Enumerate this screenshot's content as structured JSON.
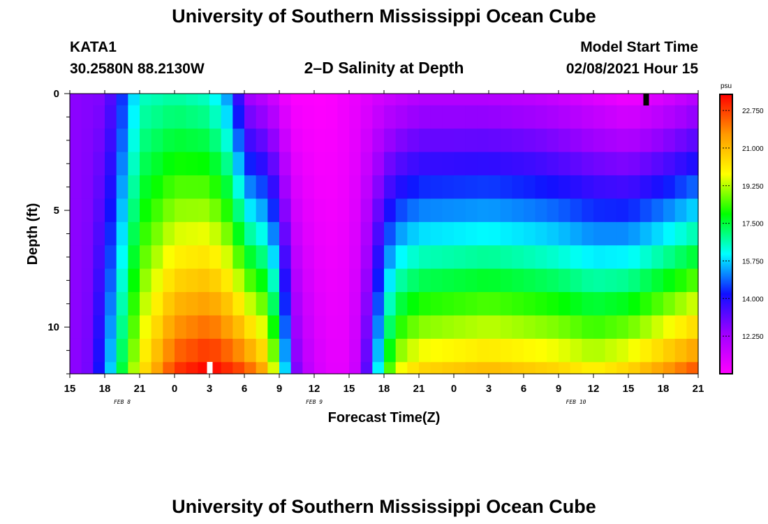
{
  "page": {
    "title_top": "University of Southern Mississippi Ocean Cube",
    "title_bottom": "University of Southern Mississippi Ocean Cube",
    "station": "KATA1",
    "coords": "30.2580N 88.2130W",
    "plot_title": "2–D Salinity at Depth",
    "model_label": "Model Start Time",
    "model_time": "02/08/2021 Hour 15"
  },
  "chart_data": {
    "type": "heatmap",
    "title": "2–D Salinity at Depth",
    "xlabel": "Forecast Time(Z)",
    "ylabel": "Depth (ft)",
    "x_tick_labels": [
      "15",
      "18",
      "21",
      "0",
      "3",
      "6",
      "9",
      "12",
      "15",
      "18",
      "21",
      "0",
      "3",
      "6",
      "9",
      "12",
      "15",
      "18",
      "21"
    ],
    "x_hours_from_start": [
      0,
      3,
      6,
      9,
      12,
      15,
      18,
      21,
      24,
      27,
      30,
      33,
      36,
      39,
      42,
      45,
      48,
      51,
      54
    ],
    "date_labels": [
      {
        "text": "FEB 8",
        "hour": 4.5
      },
      {
        "text": "FEB 9",
        "hour": 21
      },
      {
        "text": "FEB 10",
        "hour": 43.5
      }
    ],
    "y_tick_labels": [
      "0",
      "5",
      "10"
    ],
    "y_tick_values": [
      0,
      5,
      10
    ],
    "ylim": [
      0,
      12
    ],
    "xlim": [
      0,
      54
    ],
    "colorbar": {
      "unit": "psu",
      "min": 10.5,
      "max": 23.5,
      "tick_labels": [
        "22.750",
        "21.000",
        "19.250",
        "17.500",
        "15.750",
        "14.000",
        "12.250"
      ],
      "tick_values": [
        22.75,
        21.0,
        19.25,
        17.5,
        15.75,
        14.0,
        12.25
      ],
      "colors": [
        "#ff00ff",
        "#a000ff",
        "#1010ff",
        "#00ffff",
        "#00ff00",
        "#ffff00",
        "#ff9900",
        "#ff0000"
      ]
    },
    "depth_levels": [
      0,
      1,
      2,
      3,
      4,
      5,
      6,
      7,
      8,
      9,
      10,
      11,
      12
    ],
    "surface_profile": [
      [
        0,
        12.6
      ],
      [
        3,
        12.8
      ],
      [
        4.5,
        14.5
      ],
      [
        6,
        16.5
      ],
      [
        9,
        16.8
      ],
      [
        12,
        16.5
      ],
      [
        14,
        15.0
      ],
      [
        15,
        12.5
      ],
      [
        17,
        11.8
      ],
      [
        19,
        10.6
      ],
      [
        22,
        10.5
      ],
      [
        25,
        11.0
      ],
      [
        27,
        11.5
      ],
      [
        30,
        12.0
      ],
      [
        36,
        12.0
      ],
      [
        40,
        11.8
      ],
      [
        42,
        11.6
      ],
      [
        45,
        11.2
      ],
      [
        48,
        10.8
      ],
      [
        51,
        11.3
      ],
      [
        54,
        12.0
      ]
    ],
    "bottom_profile": [
      [
        0,
        12.5
      ],
      [
        1.5,
        12.9
      ],
      [
        3,
        14.8
      ],
      [
        4.5,
        17.5
      ],
      [
        6,
        20.0
      ],
      [
        9,
        22.8
      ],
      [
        12,
        23.5
      ],
      [
        15,
        22.5
      ],
      [
        17,
        21.0
      ],
      [
        18,
        18.0
      ],
      [
        19,
        13.5
      ],
      [
        20,
        12.0
      ],
      [
        22,
        11.0
      ],
      [
        24,
        11.0
      ],
      [
        25,
        12.0
      ],
      [
        26,
        14.5
      ],
      [
        27,
        17.5
      ],
      [
        28,
        19.5
      ],
      [
        30,
        20.5
      ],
      [
        36,
        21.0
      ],
      [
        42,
        20.5
      ],
      [
        45,
        20.0
      ],
      [
        48,
        20.5
      ],
      [
        51,
        21.5
      ],
      [
        54,
        22.5
      ]
    ],
    "markers": [
      {
        "hour": 12,
        "depth": 11.8,
        "color": "#ffffff"
      },
      {
        "hour": 49.5,
        "depth": 0.2,
        "color": "#000000"
      }
    ]
  }
}
